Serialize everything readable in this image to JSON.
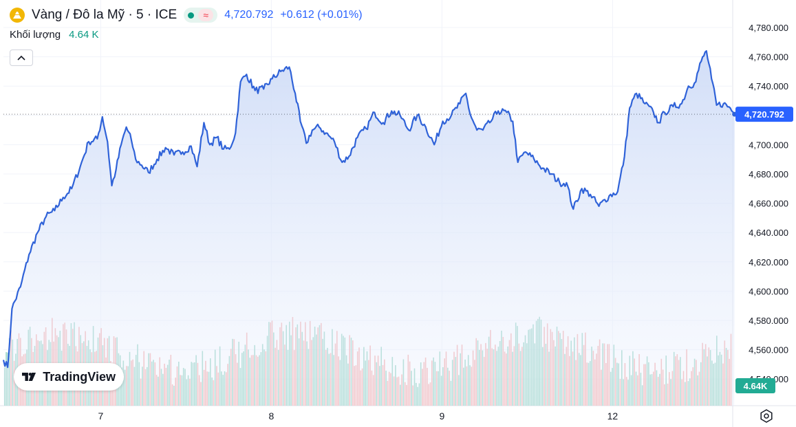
{
  "header": {
    "symbol_title": "Vàng / Đô la Mỹ · 5 · ICE",
    "delay_symbol": "≈",
    "last_price": "4,720.792",
    "change": "+0.612 (+0.01%)"
  },
  "volume": {
    "label": "Khối lượng",
    "value": "4.64 K"
  },
  "brand": {
    "text": "TradingView"
  },
  "colors": {
    "line": "#2f62d8",
    "area_top": "#cfdcf7",
    "area_bottom": "#eef3fd",
    "volume_up": "#8ccfbf",
    "volume_down": "#f5a6a6",
    "grid": "#f0f3fa",
    "axis_text": "#131722",
    "price_label_bg": "#2962ff",
    "volume_label_bg": "#22ab94"
  },
  "icons": {
    "symbol": "gold-coin-icon",
    "collapse": "chevron-up-icon",
    "settings": "settings-icon",
    "brand": "tradingview-logo-icon"
  },
  "chart_data": {
    "type": "area",
    "title": "Vàng / Đô la Mỹ · 5 · ICE",
    "x_tick_labels": [
      "7",
      "8",
      "9",
      "12"
    ],
    "x_tick_positions": [
      1.14,
      3.14,
      5.14,
      7.14
    ],
    "x_range": [
      0,
      8.62
    ],
    "ylim": [
      4533,
      4788
    ],
    "y_ticks": [
      4540,
      4560,
      4580,
      4600,
      4620,
      4640,
      4660,
      4680,
      4700,
      4720,
      4740,
      4760,
      4780
    ],
    "y_tick_labels": [
      "4,540.000",
      "4,560.000",
      "4,580.000",
      "4,600.000",
      "4,620.000",
      "4,640.000",
      "4,660.000",
      "4,680.000",
      "4,700.000",
      "4,720.000",
      "4,740.000",
      "4,760.000",
      "4,780.000"
    ],
    "last_value": 4720.792,
    "last_value_label": "4,720.792",
    "volume_last_label": "4.64K",
    "grid": true,
    "series": [
      {
        "values": [
          [
            0.0,
            4553
          ],
          [
            0.05,
            4548
          ],
          [
            0.1,
            4588
          ],
          [
            0.2,
            4603
          ],
          [
            0.3,
            4625
          ],
          [
            0.4,
            4640
          ],
          [
            0.5,
            4651
          ],
          [
            0.6,
            4655
          ],
          [
            0.7,
            4664
          ],
          [
            0.8,
            4670
          ],
          [
            0.9,
            4685
          ],
          [
            1.0,
            4702
          ],
          [
            1.1,
            4704
          ],
          [
            1.16,
            4719
          ],
          [
            1.22,
            4702
          ],
          [
            1.27,
            4672
          ],
          [
            1.32,
            4683
          ],
          [
            1.38,
            4700
          ],
          [
            1.44,
            4712
          ],
          [
            1.5,
            4703
          ],
          [
            1.55,
            4690
          ],
          [
            1.62,
            4686
          ],
          [
            1.7,
            4681
          ],
          [
            1.8,
            4690
          ],
          [
            1.9,
            4698
          ],
          [
            2.0,
            4693
          ],
          [
            2.1,
            4695
          ],
          [
            2.2,
            4699
          ],
          [
            2.27,
            4685
          ],
          [
            2.35,
            4715
          ],
          [
            2.42,
            4700
          ],
          [
            2.5,
            4705
          ],
          [
            2.58,
            4697
          ],
          [
            2.65,
            4697
          ],
          [
            2.72,
            4708
          ],
          [
            2.78,
            4743
          ],
          [
            2.85,
            4748
          ],
          [
            2.95,
            4737
          ],
          [
            3.05,
            4738
          ],
          [
            3.15,
            4745
          ],
          [
            3.25,
            4750
          ],
          [
            3.35,
            4753
          ],
          [
            3.42,
            4735
          ],
          [
            3.48,
            4716
          ],
          [
            3.55,
            4701
          ],
          [
            3.62,
            4710
          ],
          [
            3.7,
            4712
          ],
          [
            3.78,
            4708
          ],
          [
            3.88,
            4702
          ],
          [
            3.97,
            4688
          ],
          [
            4.05,
            4692
          ],
          [
            4.15,
            4705
          ],
          [
            4.25,
            4711
          ],
          [
            4.35,
            4722
          ],
          [
            4.45,
            4715
          ],
          [
            4.55,
            4723
          ],
          [
            4.65,
            4720
          ],
          [
            4.75,
            4710
          ],
          [
            4.85,
            4720
          ],
          [
            4.95,
            4712
          ],
          [
            5.05,
            4700
          ],
          [
            5.15,
            4716
          ],
          [
            5.25,
            4720
          ],
          [
            5.35,
            4728
          ],
          [
            5.42,
            4735
          ],
          [
            5.47,
            4721
          ],
          [
            5.55,
            4710
          ],
          [
            5.62,
            4710
          ],
          [
            5.7,
            4715
          ],
          [
            5.8,
            4723
          ],
          [
            5.9,
            4722
          ],
          [
            5.97,
            4716
          ],
          [
            6.03,
            4688
          ],
          [
            6.12,
            4695
          ],
          [
            6.22,
            4690
          ],
          [
            6.32,
            4684
          ],
          [
            6.42,
            4680
          ],
          [
            6.52,
            4674
          ],
          [
            6.6,
            4674
          ],
          [
            6.68,
            4656
          ],
          [
            6.78,
            4670
          ],
          [
            6.88,
            4666
          ],
          [
            6.98,
            4658
          ],
          [
            7.1,
            4665
          ],
          [
            7.2,
            4668
          ],
          [
            7.28,
            4692
          ],
          [
            7.34,
            4725
          ],
          [
            7.42,
            4735
          ],
          [
            7.52,
            4728
          ],
          [
            7.62,
            4722
          ],
          [
            7.68,
            4715
          ],
          [
            7.75,
            4722
          ],
          [
            7.85,
            4726
          ],
          [
            7.95,
            4728
          ],
          [
            8.03,
            4740
          ],
          [
            8.1,
            4742
          ],
          [
            8.18,
            4757
          ],
          [
            8.24,
            4764
          ],
          [
            8.3,
            4745
          ],
          [
            8.36,
            4727
          ],
          [
            8.44,
            4728
          ],
          [
            8.52,
            4725
          ],
          [
            8.57,
            4720.792
          ]
        ]
      }
    ]
  }
}
